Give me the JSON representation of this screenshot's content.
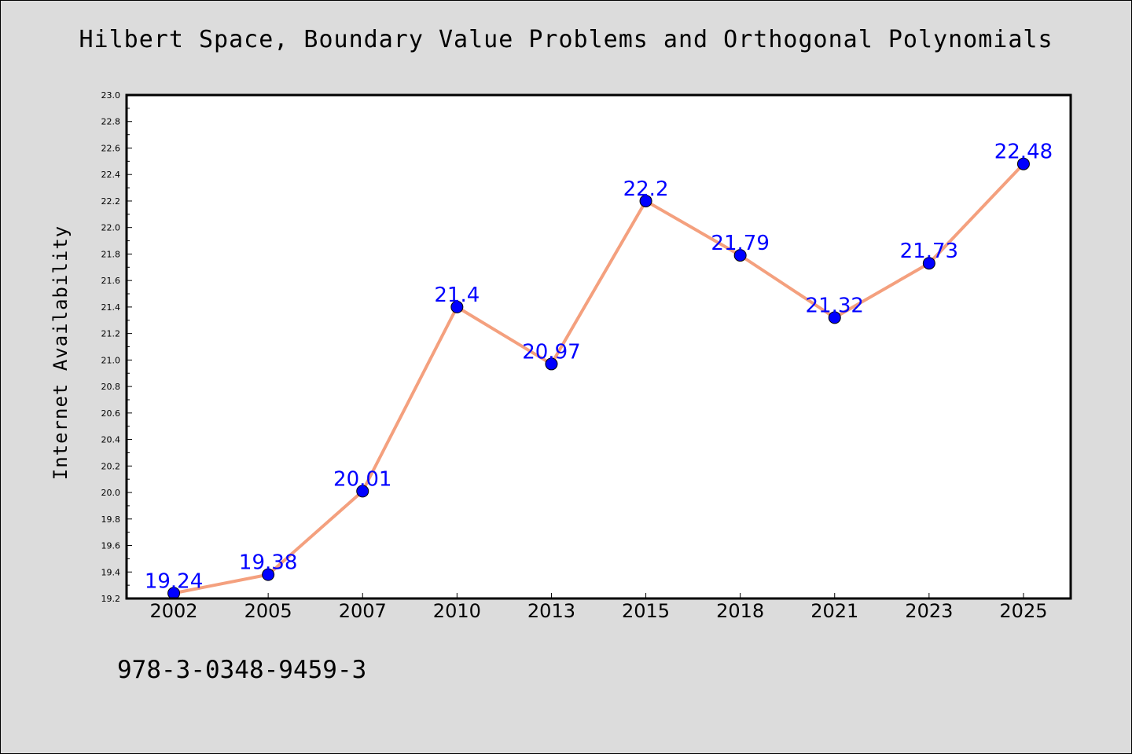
{
  "chart_data": {
    "type": "line",
    "title": "Hilbert Space, Boundary Value Problems and Orthogonal Polynomials",
    "xlabel": "",
    "ylabel": "Internet Availability",
    "categories": [
      "2002",
      "2005",
      "2007",
      "2010",
      "2013",
      "2015",
      "2018",
      "2021",
      "2023",
      "2025"
    ],
    "series": [
      {
        "values": [
          19.24,
          19.38,
          20.01,
          21.4,
          20.97,
          22.2,
          21.79,
          21.32,
          21.73,
          22.48
        ],
        "data_labels": [
          "19.24",
          "19.38",
          "20.01",
          "21.4",
          "20.97",
          "22.2",
          "21.79",
          "21.32",
          "21.73",
          "22.48"
        ]
      }
    ],
    "ylim": [
      19.2,
      23.0
    ],
    "y_ticks": [
      "19.2",
      "19.4",
      "19.6",
      "19.8",
      "20.0",
      "20.2",
      "20.4",
      "20.6",
      "20.8",
      "21.0",
      "21.2",
      "21.4",
      "21.6",
      "21.8",
      "22.0",
      "22.2",
      "22.4",
      "22.6",
      "22.8",
      "23.0"
    ],
    "grid": false,
    "legend": "none",
    "colors": {
      "line": "#f4a07e",
      "marker": "#0000ff",
      "data_label": "#0000ff",
      "background": "#dcdcdc",
      "plot_area": "#ffffff"
    }
  },
  "footer": {
    "code": "978-3-0348-9459-3"
  }
}
